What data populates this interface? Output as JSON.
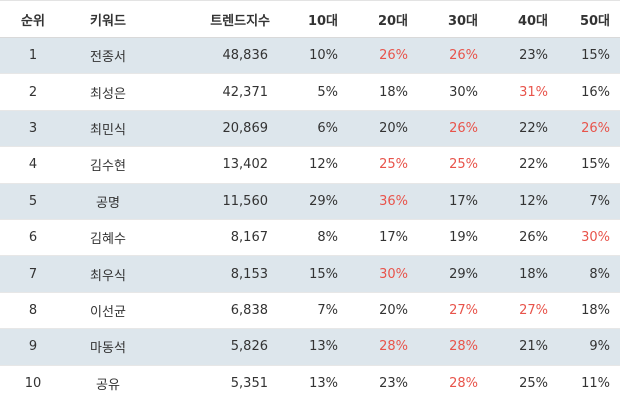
{
  "columns": {
    "rank": "순위",
    "keyword": "키워드",
    "trend": "트렌드지수",
    "age10": "10대",
    "age20": "20대",
    "age30": "30대",
    "age40": "40대",
    "age50": "50대"
  },
  "highlight_color": "#e8544b",
  "row_shade_color": "#dde6ec",
  "rows": [
    {
      "rank": "1",
      "keyword": "전종서",
      "trend": "48,836",
      "a10": "10%",
      "a20": "26%",
      "a30": "26%",
      "a40": "23%",
      "a50": "15%",
      "highlight": [
        "a20",
        "a30"
      ]
    },
    {
      "rank": "2",
      "keyword": "최성은",
      "trend": "42,371",
      "a10": "5%",
      "a20": "18%",
      "a30": "30%",
      "a40": "31%",
      "a50": "16%",
      "highlight": [
        "a40"
      ]
    },
    {
      "rank": "3",
      "keyword": "최민식",
      "trend": "20,869",
      "a10": "6%",
      "a20": "20%",
      "a30": "26%",
      "a40": "22%",
      "a50": "26%",
      "highlight": [
        "a30",
        "a50"
      ]
    },
    {
      "rank": "4",
      "keyword": "김수현",
      "trend": "13,402",
      "a10": "12%",
      "a20": "25%",
      "a30": "25%",
      "a40": "22%",
      "a50": "15%",
      "highlight": [
        "a20",
        "a30"
      ]
    },
    {
      "rank": "5",
      "keyword": "공명",
      "trend": "11,560",
      "a10": "29%",
      "a20": "36%",
      "a30": "17%",
      "a40": "12%",
      "a50": "7%",
      "highlight": [
        "a20"
      ]
    },
    {
      "rank": "6",
      "keyword": "김혜수",
      "trend": "8,167",
      "a10": "8%",
      "a20": "17%",
      "a30": "19%",
      "a40": "26%",
      "a50": "30%",
      "highlight": [
        "a50"
      ]
    },
    {
      "rank": "7",
      "keyword": "최우식",
      "trend": "8,153",
      "a10": "15%",
      "a20": "30%",
      "a30": "29%",
      "a40": "18%",
      "a50": "8%",
      "highlight": [
        "a20"
      ]
    },
    {
      "rank": "8",
      "keyword": "이선균",
      "trend": "6,838",
      "a10": "7%",
      "a20": "20%",
      "a30": "27%",
      "a40": "27%",
      "a50": "18%",
      "highlight": [
        "a30",
        "a40"
      ]
    },
    {
      "rank": "9",
      "keyword": "마동석",
      "trend": "5,826",
      "a10": "13%",
      "a20": "28%",
      "a30": "28%",
      "a40": "21%",
      "a50": "9%",
      "highlight": [
        "a20",
        "a30"
      ]
    },
    {
      "rank": "10",
      "keyword": "공유",
      "trend": "5,351",
      "a10": "13%",
      "a20": "23%",
      "a30": "28%",
      "a40": "25%",
      "a50": "11%",
      "highlight": [
        "a30"
      ]
    }
  ]
}
